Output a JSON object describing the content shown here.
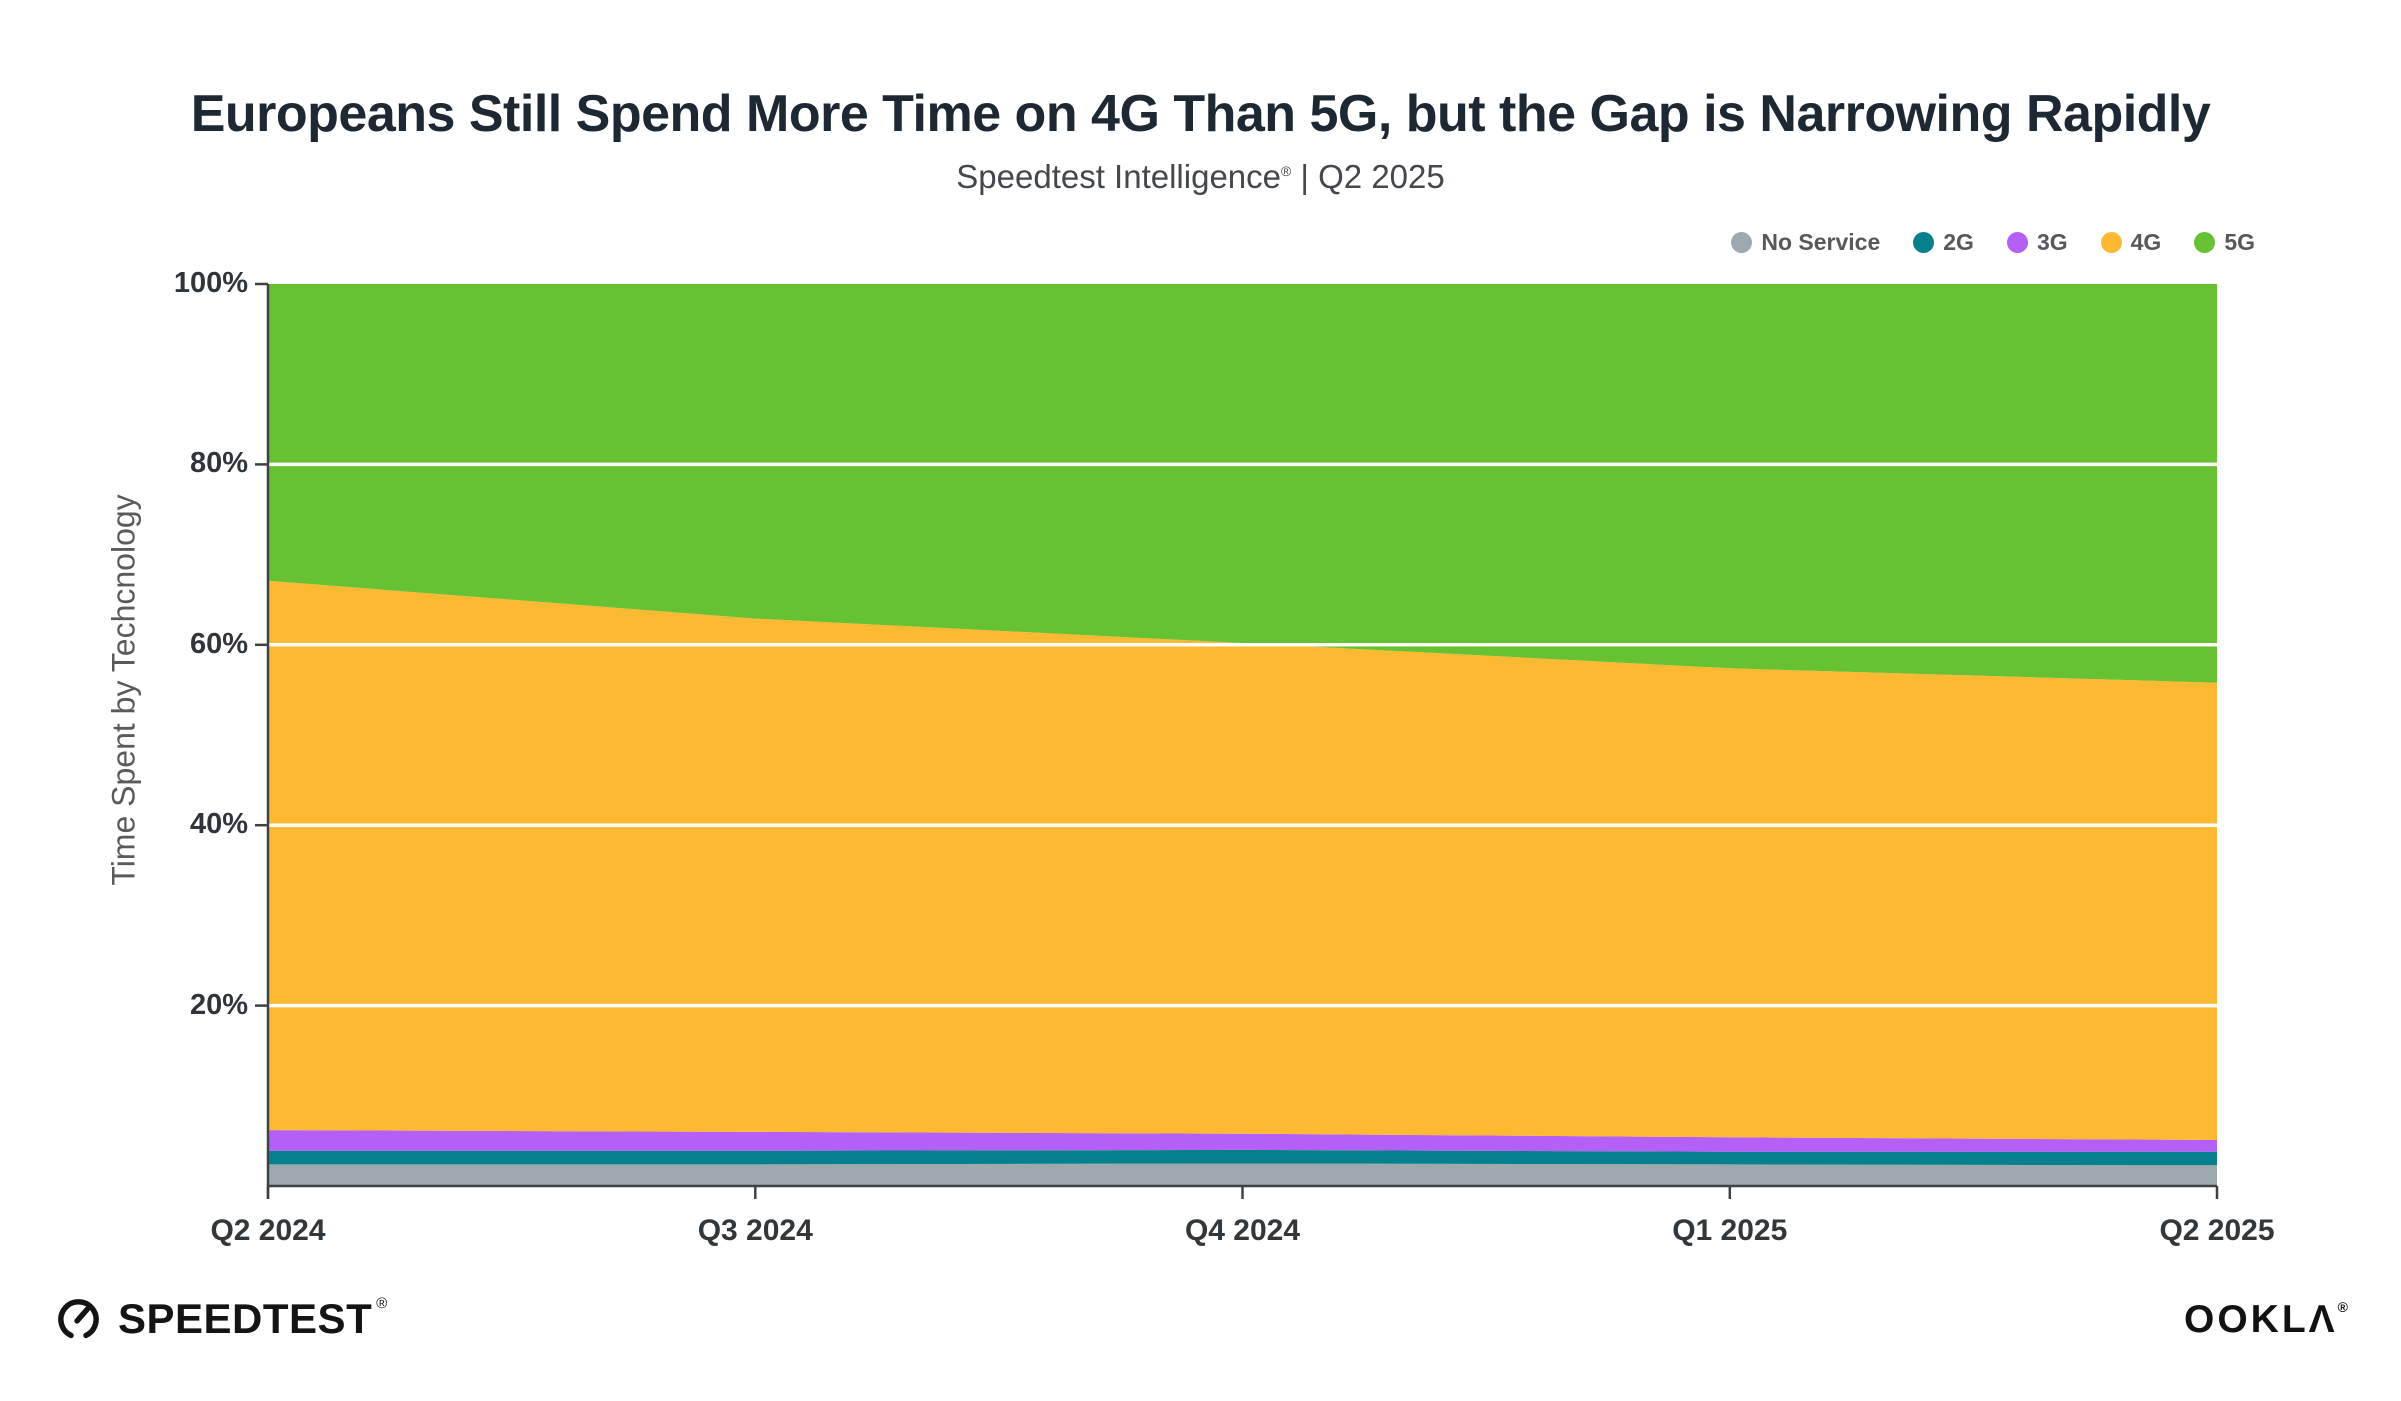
{
  "header": {
    "title": "Europeans Still Spend More Time on 4G Than 5G, but the Gap is Narrowing Rapidly",
    "subtitle_brand": "Speedtest Intelligence",
    "subtitle_reg": "®",
    "subtitle_rest": " | Q2 2025"
  },
  "chart_data": {
    "type": "area",
    "stacked": true,
    "title": "Europeans Still Spend More Time on 4G Than 5G, but the Gap is Narrowing Rapidly",
    "subtitle": "Speedtest Intelligence® | Q2 2025",
    "categories": [
      "Q2 2024",
      "Q3 2024",
      "Q4 2024",
      "Q1 2025",
      "Q2 2025"
    ],
    "series": [
      {
        "name": "No Service",
        "color": "#9EA9AF",
        "values": [
          2.4,
          2.4,
          2.5,
          2.4,
          2.3
        ]
      },
      {
        "name": "2G",
        "color": "#07808D",
        "values": [
          1.5,
          1.5,
          1.5,
          1.4,
          1.5
        ]
      },
      {
        "name": "3G",
        "color": "#B45FF5",
        "values": [
          2.3,
          2.1,
          1.8,
          1.6,
          1.3
        ]
      },
      {
        "name": "4G",
        "color": "#FDB931",
        "values": [
          60.9,
          56.9,
          54.4,
          52.0,
          50.7
        ]
      },
      {
        "name": "5G",
        "color": "#67C233",
        "values": [
          32.9,
          37.1,
          39.8,
          42.6,
          44.2
        ]
      }
    ],
    "units": "percent",
    "ylabel": "Time Spent by Techcnology",
    "ylim": [
      0,
      100
    ],
    "yticks": [
      {
        "value": 20,
        "label": "20%"
      },
      {
        "value": 40,
        "label": "40%"
      },
      {
        "value": 60,
        "label": "60%"
      },
      {
        "value": 80,
        "label": "80%"
      },
      {
        "value": 100,
        "label": "100%"
      }
    ],
    "grid": "horizontal white lines every 20%",
    "legend_position": "top-right",
    "axis_line_color": "#3e4245",
    "gridline_color": "#FFFFFF"
  },
  "footer": {
    "speedtest_label": "SPEEDTEST",
    "speedtest_reg": "®",
    "ookla_label": "OOKLΛ",
    "ookla_reg": "®"
  }
}
